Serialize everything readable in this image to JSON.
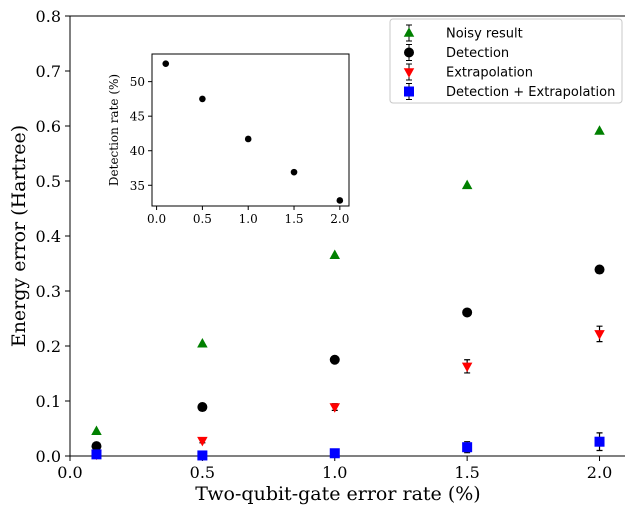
{
  "chart_data": [
    {
      "type": "scatter",
      "xlabel": "Two-qubit-gate error rate (%)",
      "ylabel": "Energy error (Hartree)",
      "xlim": [
        0.0,
        2.1
      ],
      "ylim": [
        0.0,
        0.8
      ],
      "xticks": [
        "0.0",
        "0.5",
        "1.0",
        "1.5",
        "2.0"
      ],
      "yticks": [
        "0.0",
        "0.1",
        "0.2",
        "0.3",
        "0.4",
        "0.5",
        "0.6",
        "0.7",
        "0.8"
      ],
      "legend_position": "top-right",
      "series": [
        {
          "name": "Noisy result",
          "marker": "triangle-up",
          "color": "#008000",
          "x": [
            0.1,
            0.5,
            1.0,
            1.5,
            2.0
          ],
          "y": [
            0.045,
            0.204,
            0.365,
            0.492,
            0.591
          ],
          "err": [
            0,
            0,
            0,
            0,
            0
          ]
        },
        {
          "name": "Detection",
          "marker": "circle",
          "color": "#000000",
          "x": [
            0.1,
            0.5,
            1.0,
            1.5,
            2.0
          ],
          "y": [
            0.018,
            0.089,
            0.175,
            0.261,
            0.339
          ],
          "err": [
            0,
            0,
            0,
            0,
            0
          ]
        },
        {
          "name": "Extrapolation",
          "marker": "triangle-down",
          "color": "#ff0000",
          "x": [
            0.1,
            0.5,
            1.0,
            1.5,
            2.0
          ],
          "y": [
            0.003,
            0.028,
            0.089,
            0.163,
            0.222
          ],
          "err": [
            0.002,
            0.004,
            0.006,
            0.012,
            0.014
          ]
        },
        {
          "name": "Detection + Extrapolation",
          "marker": "square",
          "color": "#0000ff",
          "x": [
            0.1,
            0.5,
            1.0,
            1.5,
            2.0
          ],
          "y": [
            0.003,
            0.001,
            0.005,
            0.016,
            0.026
          ],
          "err": [
            0.002,
            0.002,
            0.004,
            0.01,
            0.016
          ]
        }
      ]
    },
    {
      "type": "scatter",
      "inset": true,
      "xlabel": "",
      "ylabel": "Detection rate (%)",
      "xlim": [
        -0.05,
        2.1
      ],
      "ylim": [
        32,
        54
      ],
      "xticks": [
        "0.0",
        "0.5",
        "1.0",
        "1.5",
        "2.0"
      ],
      "yticks": [
        "35",
        "40",
        "45",
        "50"
      ],
      "series": [
        {
          "marker": "circle",
          "color": "#000000",
          "x": [
            0.1,
            0.5,
            1.0,
            1.5,
            2.0
          ],
          "y": [
            52.6,
            47.5,
            41.7,
            36.9,
            32.8
          ]
        }
      ]
    }
  ]
}
